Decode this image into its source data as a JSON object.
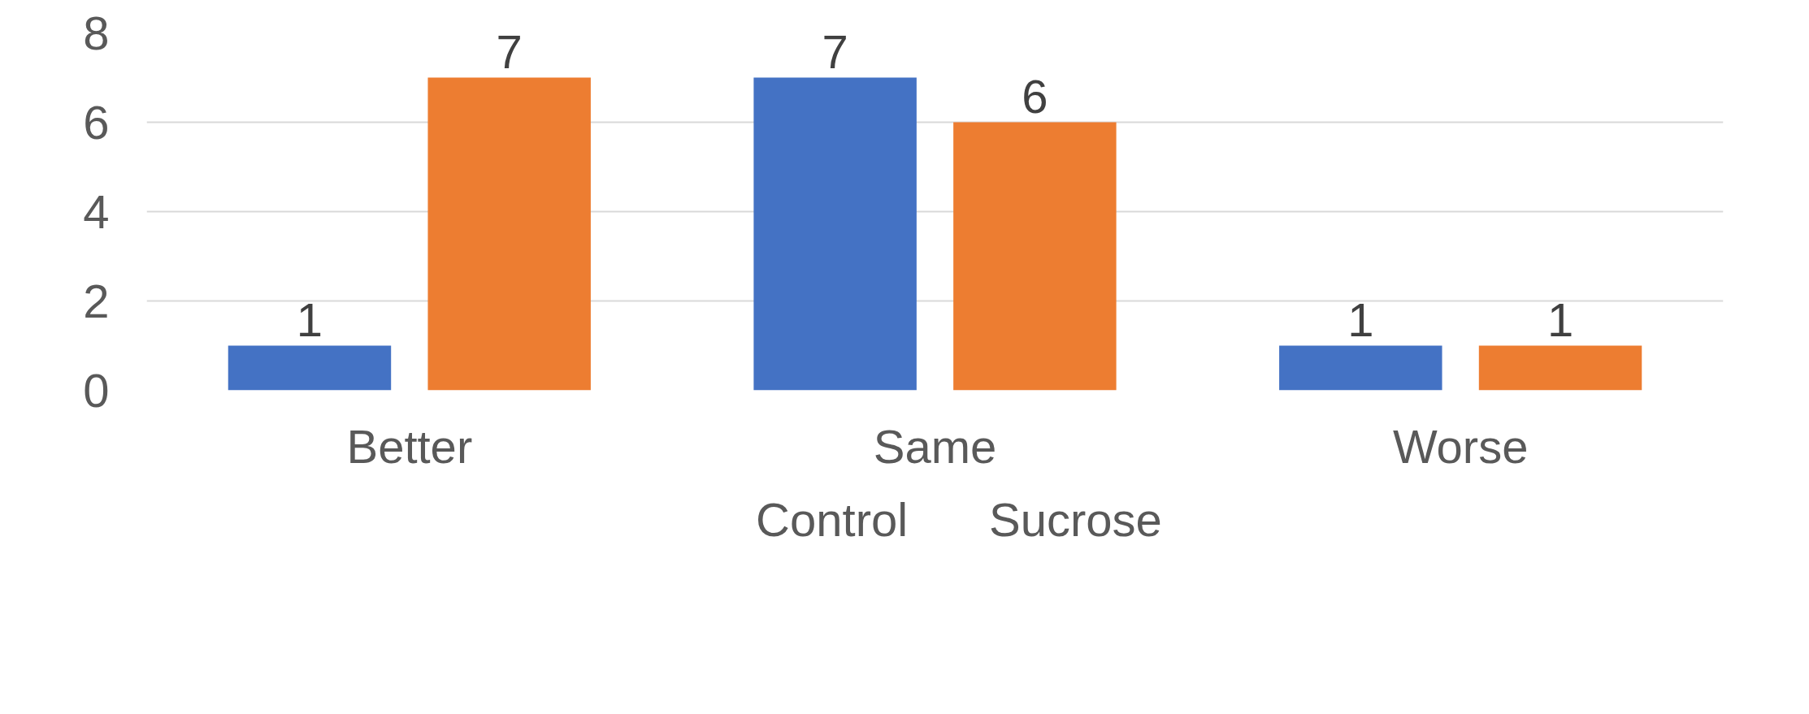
{
  "chart_data": {
    "type": "bar",
    "categories": [
      "Better",
      "Same",
      "Worse"
    ],
    "series": [
      {
        "name": "Control",
        "color": "#4472c4",
        "values": [
          1,
          7,
          1
        ]
      },
      {
        "name": "Sucrose",
        "color": "#ed7d31",
        "values": [
          7,
          6,
          1
        ]
      }
    ],
    "ylim": [
      0,
      8
    ],
    "yticks": [
      0,
      2,
      4,
      6,
      8
    ],
    "grid": "y",
    "legend": "bottom",
    "data_labels": true
  }
}
